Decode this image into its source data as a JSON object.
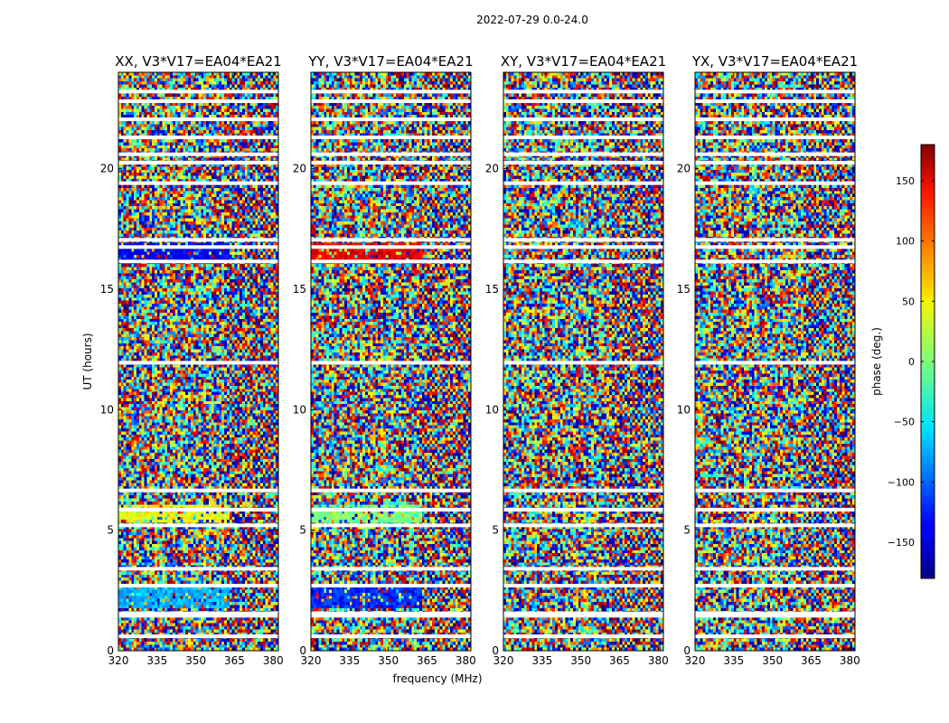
{
  "chart_data": {
    "type": "heatmap",
    "suptitle": "2022-07-29 0.0-24.0",
    "xlabel": "frequency (MHz)",
    "ylabel": "UT (hours)",
    "xlim": [
      320,
      382
    ],
    "ylim": [
      0,
      24
    ],
    "xticks": [
      320,
      335,
      350,
      365,
      380
    ],
    "yticks": [
      0,
      5,
      10,
      15,
      20
    ],
    "panels": [
      {
        "title": "XX, V3*V17=EA04*EA21"
      },
      {
        "title": "YY, V3*V17=EA04*EA21"
      },
      {
        "title": "XY, V3*V17=EA04*EA21"
      },
      {
        "title": "YX, V3*V17=EA04*EA21"
      }
    ],
    "colorbar": {
      "label": "phase (deg.)",
      "range": [
        -180,
        180
      ],
      "ticks": [
        150,
        100,
        50,
        0,
        -50,
        -100,
        -150
      ],
      "colormap": "jet"
    },
    "flagged_gaps_hours": [
      23.2,
      22.8,
      22.05,
      21.3,
      20.6,
      20.25,
      19.4,
      17.05,
      16.75,
      16.15,
      11.95,
      6.65,
      5.85,
      5.2,
      3.4,
      2.7,
      1.55,
      1.45,
      0.6
    ]
  }
}
